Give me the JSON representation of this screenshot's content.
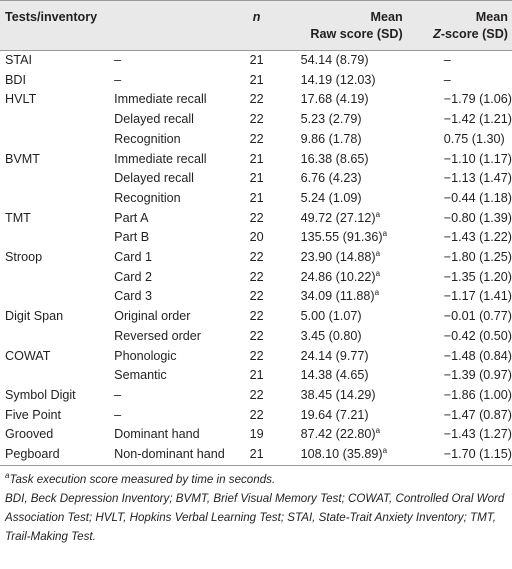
{
  "header": {
    "test": "Tests/inventory",
    "n": "n",
    "raw": {
      "line1": "Mean",
      "line2": "Raw score (SD)"
    },
    "z": {
      "line1": "Mean",
      "italic": "Z",
      "rest": "-score (SD)"
    }
  },
  "table": {
    "rows": [
      {
        "test": "STAI",
        "subtest": "–",
        "n": 21,
        "raw": "54.14 (8.79)",
        "z": "–"
      },
      {
        "test": "BDI",
        "subtest": "–",
        "n": 21,
        "raw": "14.19 (12.03)",
        "z": "–"
      },
      {
        "test": "HVLT",
        "subtest": "Immediate recall",
        "n": 22,
        "raw": "17.68 (4.19)",
        "z": "−1.79 (1.06)"
      },
      {
        "subtest": "Delayed recall",
        "n": 22,
        "raw": "5.23 (2.79)",
        "z": "−1.42 (1.21)"
      },
      {
        "subtest": "Recognition",
        "n": 22,
        "raw": "9.86 (1.78)",
        "z": "0.75 (1.30)"
      },
      {
        "test": "BVMT",
        "subtest": "Immediate recall",
        "n": 21,
        "raw": "16.38 (8.65)",
        "z": "−1.10 (1.17)"
      },
      {
        "subtest": "Delayed recall",
        "n": 21,
        "raw": "6.76 (4.23)",
        "z": "−1.13 (1.47)"
      },
      {
        "subtest": "Recognition",
        "n": 21,
        "raw": "5.24 (1.09)",
        "z": "−0.44 (1.18)"
      },
      {
        "test": "TMT",
        "subtest": "Part A",
        "n": 22,
        "raw": "49.72 (27.12)",
        "note": "a",
        "z": "−0.80 (1.39)"
      },
      {
        "subtest": "Part B",
        "n": 20,
        "raw": "135.55 (91.36)",
        "note": "a",
        "z": "−1.43 (1.22)"
      },
      {
        "test": "Stroop",
        "subtest": "Card 1",
        "n": 22,
        "raw": "23.90 (14.88)",
        "note": "a",
        "z": "−1.80 (1.25)"
      },
      {
        "subtest": "Card 2",
        "n": 22,
        "raw": "24.86 (10.22)",
        "note": "a",
        "z": "−1.35 (1.20)"
      },
      {
        "subtest": "Card 3",
        "n": 22,
        "raw": "34.09 (11.88)",
        "note": "a",
        "z": "−1.17 (1.41)"
      },
      {
        "test": "Digit Span",
        "subtest": "Original order",
        "n": 22,
        "raw": "5.00 (1.07)",
        "z": "−0.01 (0.77)"
      },
      {
        "subtest": "Reversed order",
        "n": 22,
        "raw": "3.45 (0.80)",
        "z": "−0.42 (0.50)"
      },
      {
        "test": "COWAT",
        "subtest": "Phonologic",
        "n": 22,
        "raw": "24.14 (9.77)",
        "z": "−1.48 (0.84)"
      },
      {
        "subtest": "Semantic",
        "n": 21,
        "raw": "14.38 (4.65)",
        "z": "−1.39 (0.97)"
      },
      {
        "test": "Symbol Digit",
        "subtest": "–",
        "n": 22,
        "raw": "38.45 (14.29)",
        "z": "−1.86 (1.00)"
      },
      {
        "test": "Five Point",
        "subtest": "–",
        "n": 22,
        "raw": "19.64 (7.21)",
        "z": "−1.47 (0.87)"
      },
      {
        "test": "Grooved",
        "subtest": "Dominant hand",
        "n": 19,
        "raw": "87.42 (22.80)",
        "note": "a",
        "z": "−1.43 (1.27)"
      },
      {
        "test": "Pegboard",
        "subtest": "Non-dominant hand",
        "n": 21,
        "raw": "108.10 (35.89)",
        "note": "a",
        "z": "−1.70 (1.15)"
      }
    ]
  },
  "footnotes": {
    "marker": "a",
    "note": "Task execution score measured by time in seconds.",
    "abbreviations": "BDI, Beck Depression Inventory; BVMT, Brief Visual Memory Test; COWAT, Controlled Oral Word Association Test; HVLT, Hopkins Verbal Learning Test; STAI, State-Trait Anxiety Inventory; TMT, Trail-Making Test."
  }
}
